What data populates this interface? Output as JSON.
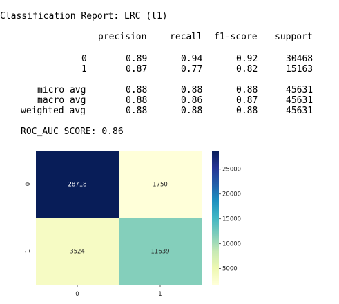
{
  "report": {
    "title": "Classification Report: LRC (l1)",
    "headers": [
      "precision",
      "recall",
      "f1-score",
      "support"
    ],
    "rows": [
      {
        "label": "0",
        "precision": "0.89",
        "recall": "0.94",
        "f1": "0.92",
        "support": "30468"
      },
      {
        "label": "1",
        "precision": "0.87",
        "recall": "0.77",
        "f1": "0.82",
        "support": "15163"
      },
      {
        "label": "micro avg",
        "precision": "0.88",
        "recall": "0.88",
        "f1": "0.88",
        "support": "45631"
      },
      {
        "label": "macro avg",
        "precision": "0.88",
        "recall": "0.86",
        "f1": "0.87",
        "support": "45631"
      },
      {
        "label": "weighted avg",
        "precision": "0.88",
        "recall": "0.88",
        "f1": "0.88",
        "support": "45631"
      }
    ],
    "roc_auc": "ROC_AUC SCORE: 0.86"
  },
  "chart_data": {
    "type": "heatmap",
    "title": "",
    "xlabel": "",
    "ylabel": "",
    "x_categories": [
      "0",
      "1"
    ],
    "y_categories": [
      "0",
      "1"
    ],
    "values": [
      [
        28718,
        1750
      ],
      [
        3524,
        11639
      ]
    ],
    "colormap": "YlGnBu",
    "colorbar": {
      "ticks": [
        5000,
        10000,
        15000,
        20000,
        25000
      ],
      "range": [
        1750,
        28718
      ]
    }
  }
}
